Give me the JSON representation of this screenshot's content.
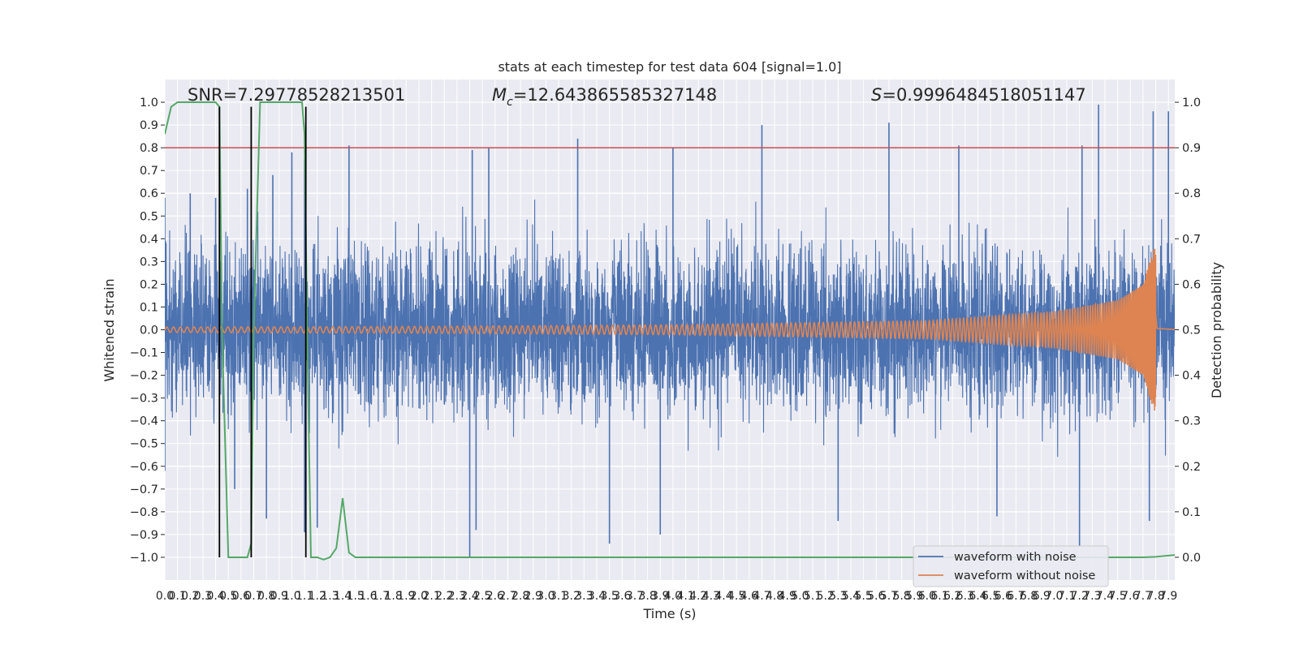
{
  "chart_data": {
    "type": "line",
    "title": "stats at each timestep for test data 604 [signal=1.0]",
    "xlabel": "Time (s)",
    "ylabel_left": "Whitened strain",
    "ylabel_right": "Detection probability",
    "xlim": [
      0.0,
      7.95
    ],
    "ylim_left": [
      -1.1,
      1.1
    ],
    "ylim_right": [
      -0.05,
      1.05
    ],
    "grid": true,
    "background": "#eaeaf2",
    "legend_position": "lower right",
    "annotations": [
      {
        "name": "snr",
        "text": "SNR=7.29778528213501",
        "x": 0.2,
        "y": 1.0
      },
      {
        "name": "chirp-mass",
        "sym": "M",
        "sub": "c",
        "text": "=12.643865585327148",
        "x": 2.58,
        "y": 1.0
      },
      {
        "name": "score",
        "sym": "S",
        "text": "=0.9996484518051147",
        "x": 5.58,
        "y": 1.0
      }
    ],
    "threshold": {
      "axis": "right",
      "value": 0.9,
      "color": "#c44e52"
    },
    "markers": {
      "x": [
        0.43,
        0.68,
        1.11
      ],
      "ymin": -1.0,
      "ymax": 0.98,
      "color": "#000000"
    },
    "x_ticks": [
      0.0,
      0.1,
      0.2,
      0.3,
      0.4,
      0.5,
      0.6,
      0.7,
      0.8,
      0.9,
      1.0,
      1.1,
      1.2,
      1.3,
      1.4,
      1.5,
      1.6,
      1.7,
      1.8,
      1.9,
      2.0,
      2.1,
      2.2,
      2.3,
      2.4,
      2.5,
      2.6,
      2.7,
      2.8,
      2.9,
      3.0,
      3.1,
      3.2,
      3.3,
      3.4,
      3.5,
      3.6,
      3.7,
      3.8,
      3.9,
      4.0,
      4.1,
      4.2,
      4.3,
      4.4,
      4.5,
      4.6,
      4.7,
      4.8,
      4.9,
      5.0,
      5.1,
      5.2,
      5.3,
      5.4,
      5.5,
      5.6,
      5.7,
      5.8,
      5.9,
      6.0,
      6.1,
      6.2,
      6.3,
      6.4,
      6.5,
      6.6,
      6.7,
      6.8,
      6.9,
      7.0,
      7.1,
      7.2,
      7.3,
      7.4,
      7.5,
      7.6,
      7.7,
      7.8,
      7.9
    ],
    "x_tick_labels": [
      "0.0",
      "0.1",
      "0.2",
      "0.3",
      "0.4",
      "0.5",
      "0.6",
      "0.7",
      "0.8",
      "0.9",
      "1.0",
      "1.1",
      "1.2",
      "1.3",
      "1.4",
      "1.5",
      "1.6",
      "1.7",
      "1.8",
      "1.9",
      "2.0",
      "2.1",
      "2.2",
      "2.3",
      "2.4",
      "2.5",
      "2.6",
      "2.7",
      "2.8",
      "2.9",
      "3.0",
      "3.1",
      "3.2",
      "3.3",
      "3.4",
      "3.5",
      "3.6",
      "3.7",
      "3.8",
      "3.9",
      "4.0",
      "4.1",
      "4.2",
      "4.3",
      "4.4",
      "4.5",
      "4.6",
      "4.7",
      "4.8",
      "4.9",
      "5.0",
      "5.1",
      "5.2",
      "5.3",
      "5.4",
      "5.5",
      "5.6",
      "5.7",
      "5.8",
      "5.9",
      "6.0",
      "6.1",
      "6.2",
      "6.3",
      "6.4",
      "6.5",
      "6.6",
      "6.7",
      "6.8",
      "6.9",
      "7.0",
      "7.1",
      "7.2",
      "7.3",
      "7.4",
      "7.5",
      "7.6",
      "7.7",
      "7.8",
      "7.9"
    ],
    "y_left_ticks": [
      -1.0,
      -0.9,
      -0.8,
      -0.7,
      -0.6,
      -0.5,
      -0.4,
      -0.3,
      -0.2,
      -0.1,
      0.0,
      0.1,
      0.2,
      0.3,
      0.4,
      0.5,
      0.6,
      0.7,
      0.8,
      0.9,
      1.0
    ],
    "y_left_tick_labels": [
      "−1.0",
      "−0.9",
      "−0.8",
      "−0.7",
      "−0.6",
      "−0.5",
      "−0.4",
      "−0.3",
      "−0.2",
      "−0.1",
      "0.0",
      "0.1",
      "0.2",
      "0.3",
      "0.4",
      "0.5",
      "0.6",
      "0.7",
      "0.8",
      "0.9",
      "1.0"
    ],
    "y_right_ticks": [
      0.0,
      0.1,
      0.2,
      0.3,
      0.4,
      0.5,
      0.6,
      0.7,
      0.8,
      0.9,
      1.0
    ],
    "y_right_tick_labels": [
      "0.0",
      "0.1",
      "0.2",
      "0.3",
      "0.4",
      "0.5",
      "0.6",
      "0.7",
      "0.8",
      "0.9",
      "1.0"
    ],
    "series": [
      {
        "name": "waveform with noise",
        "axis": "left",
        "color": "#4c72b0",
        "kind": "dense-noise",
        "typical_amplitude": 0.5,
        "peak_max": [
          [
            0.0,
            0.58
          ],
          [
            0.2,
            0.6
          ],
          [
            0.4,
            0.58
          ],
          [
            0.65,
            0.62
          ],
          [
            0.85,
            0.68
          ],
          [
            1.0,
            0.78
          ],
          [
            1.1,
            0.75
          ],
          [
            1.45,
            0.81
          ],
          [
            2.42,
            0.79
          ],
          [
            2.55,
            0.8
          ],
          [
            3.25,
            0.84
          ],
          [
            4.0,
            0.8
          ],
          [
            4.7,
            0.9
          ],
          [
            5.7,
            0.91
          ],
          [
            6.25,
            0.81
          ],
          [
            7.22,
            0.81
          ],
          [
            7.35,
            0.99
          ],
          [
            7.78,
            0.96
          ],
          [
            7.9,
            0.96
          ]
        ],
        "peak_min": [
          [
            0.0,
            -0.62
          ],
          [
            0.55,
            -0.7
          ],
          [
            0.8,
            -0.83
          ],
          [
            1.1,
            -0.89
          ],
          [
            1.2,
            -0.87
          ],
          [
            2.4,
            -1.0
          ],
          [
            2.45,
            -0.88
          ],
          [
            3.5,
            -0.94
          ],
          [
            3.9,
            -0.9
          ],
          [
            5.3,
            -0.84
          ],
          [
            6.55,
            -0.82
          ],
          [
            7.2,
            -0.95
          ],
          [
            7.75,
            -0.84
          ]
        ]
      },
      {
        "name": "waveform without noise",
        "axis": "left",
        "color": "#dd8452",
        "kind": "chirp",
        "merger_time": 7.8,
        "envelope": [
          [
            0.0,
            0.012
          ],
          [
            2.0,
            0.015
          ],
          [
            4.0,
            0.022
          ],
          [
            6.0,
            0.04
          ],
          [
            7.0,
            0.08
          ],
          [
            7.5,
            0.13
          ],
          [
            7.7,
            0.2
          ],
          [
            7.78,
            0.35
          ],
          [
            7.8,
            0.36
          ],
          [
            7.81,
            0.03
          ],
          [
            7.95,
            0.005
          ]
        ]
      },
      {
        "name": "detection probability",
        "axis": "right",
        "color": "#55a868",
        "x": [
          0.0,
          0.05,
          0.1,
          0.2,
          0.3,
          0.4,
          0.43,
          0.45,
          0.5,
          0.55,
          0.6,
          0.62,
          0.65,
          0.68,
          0.7,
          0.75,
          0.8,
          0.9,
          1.0,
          1.08,
          1.1,
          1.12,
          1.15,
          1.2,
          1.25,
          1.3,
          1.35,
          1.4,
          1.45,
          1.5,
          2.0,
          3.0,
          4.0,
          5.0,
          6.0,
          7.0,
          7.5,
          7.7,
          7.8,
          7.95
        ],
        "values": [
          0.93,
          0.99,
          1.0,
          1.0,
          1.0,
          1.0,
          0.99,
          0.5,
          0.0,
          0.0,
          0.0,
          0.0,
          0.0,
          0.03,
          0.5,
          1.0,
          1.0,
          1.0,
          1.0,
          1.0,
          0.93,
          0.5,
          0.0,
          0.0,
          -0.005,
          0.0,
          0.02,
          0.13,
          0.01,
          0.0,
          0.0,
          0.0,
          0.0,
          0.0,
          0.0,
          0.0,
          0.0,
          0.0,
          0.001,
          0.005
        ]
      }
    ],
    "legend": [
      "waveform with noise",
      "waveform without noise"
    ]
  }
}
